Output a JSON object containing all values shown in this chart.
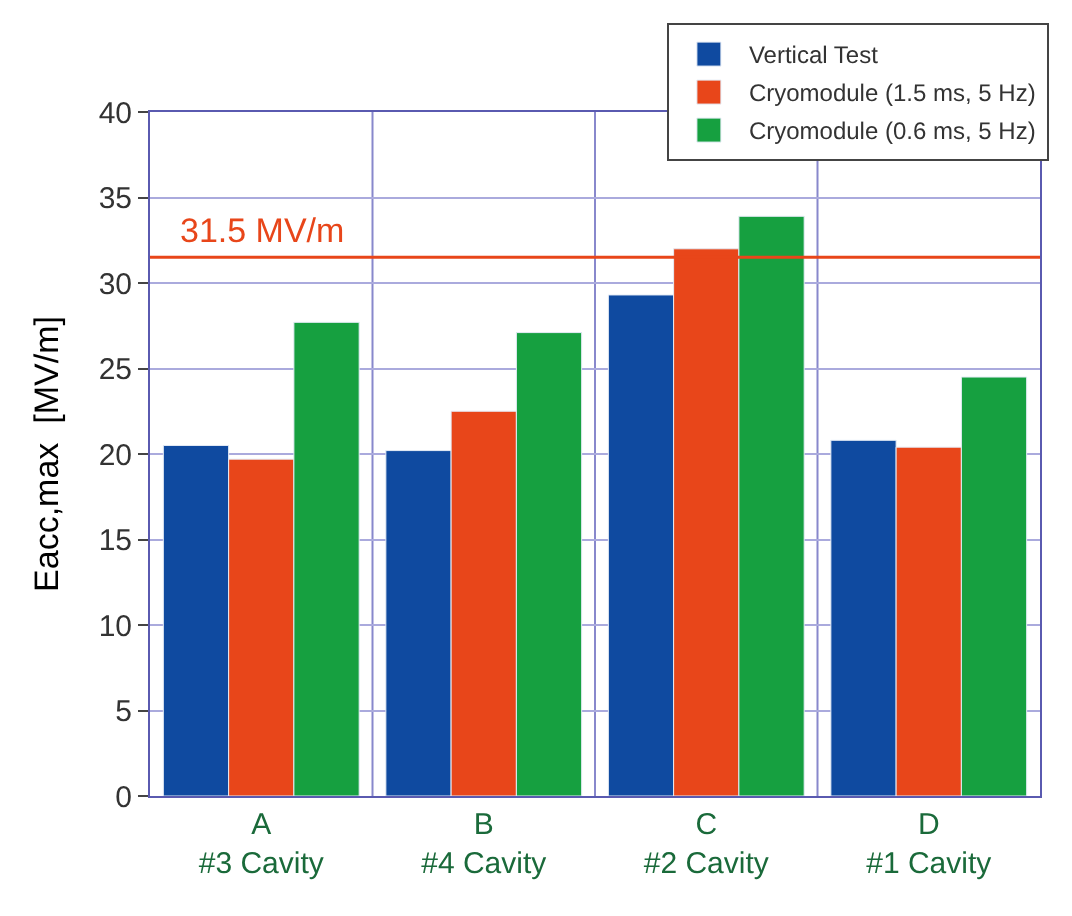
{
  "chart_data": {
    "type": "bar",
    "ylabel": "Eacc,max  [MV/m]",
    "categories": [
      "A\n#3 Cavity",
      "B\n#4 Cavity",
      "C\n#2 Cavity",
      "D\n#1 Cavity"
    ],
    "series": [
      {
        "name": "Vertical Test",
        "color": "#0f4aa0",
        "values": [
          20.5,
          20.2,
          29.3,
          20.8
        ]
      },
      {
        "name": "Cryomodule (1.5 ms, 5 Hz)",
        "color": "#e8461a",
        "values": [
          19.7,
          22.5,
          32.0,
          20.4
        ]
      },
      {
        "name": "Cryomodule (0.6 ms, 5 Hz)",
        "color": "#16a040",
        "values": [
          27.7,
          27.1,
          33.9,
          24.5
        ]
      }
    ],
    "ylim": [
      0,
      40
    ],
    "yticks": [
      0,
      5,
      10,
      15,
      20,
      25,
      30,
      35,
      40
    ],
    "ref_lines": [
      {
        "axis": "y",
        "value": 31.5,
        "label": "31.5 MV/m",
        "color": "#e8461a"
      }
    ],
    "grid": true,
    "legend": "top right"
  }
}
